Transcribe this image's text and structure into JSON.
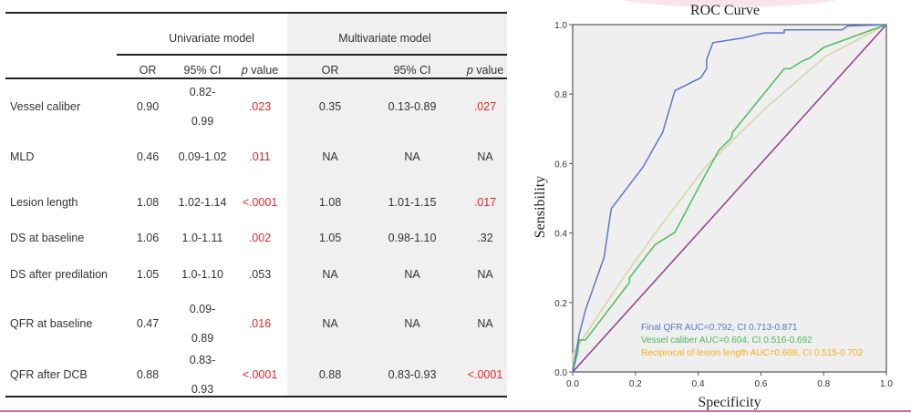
{
  "table": {
    "group_headers": [
      "Univariate model",
      "Multivariate model"
    ],
    "columns": [
      "",
      "OR",
      "95% CI",
      "p value",
      "OR",
      "95% CI",
      "p value"
    ],
    "rows": [
      {
        "label": "Vessel caliber",
        "uni_or": "0.90",
        "uni_ci": [
          "0.82-",
          "0.99"
        ],
        "uni_p": ".023",
        "uni_sig": true,
        "multi_or": "0.35",
        "multi_ci": "0.13-0.89",
        "multi_p": ".027",
        "multi_sig": true
      },
      {
        "label": "MLD",
        "uni_or": "0.46",
        "uni_ci": [
          "0.09-1.02"
        ],
        "uni_p": ".011",
        "uni_sig": true,
        "multi_or": "NA",
        "multi_ci": "NA",
        "multi_p": "NA",
        "multi_sig": false
      },
      {
        "label": "Lesion length",
        "uni_or": "1.08",
        "uni_ci": [
          "1.02-1.14"
        ],
        "uni_p": "<.0001",
        "uni_sig": true,
        "multi_or": "1.08",
        "multi_ci": "1.01-1.15",
        "multi_p": ".017",
        "multi_sig": true
      },
      {
        "label": "DS at baseline",
        "uni_or": "1.06",
        "uni_ci": [
          "1.0-1.11"
        ],
        "uni_p": ".002",
        "uni_sig": true,
        "multi_or": "1.05",
        "multi_ci": "0.98-1.10",
        "multi_p": ".32",
        "multi_sig": false
      },
      {
        "label": "DS after predilation",
        "uni_or": "1.05",
        "uni_ci": [
          "1.0-1.10"
        ],
        "uni_p": ".053",
        "uni_sig": false,
        "multi_or": "NA",
        "multi_ci": "NA",
        "multi_p": "NA",
        "multi_sig": false
      },
      {
        "label": "QFR at baseline",
        "uni_or": "0.47",
        "uni_ci": [
          "0.09-",
          "0.89"
        ],
        "uni_p": ".016",
        "uni_sig": true,
        "multi_or": "NA",
        "multi_ci": "NA",
        "multi_p": "NA",
        "multi_sig": false
      },
      {
        "label": "QFR after DCB",
        "uni_or": "0.88",
        "uni_ci": [
          "0.83-",
          "0.93"
        ],
        "uni_p": "<.0001",
        "uni_sig": true,
        "multi_or": "0.88",
        "multi_ci": "0.83-0.93",
        "multi_p": "<.0001",
        "multi_sig": true
      }
    ],
    "colors": {
      "significant": "#e8252b",
      "normal": "#333333",
      "multivariate_bg": "#f0f0f0"
    }
  },
  "chart_data": {
    "type": "line",
    "title": "ROC Curve",
    "xlabel": "Specificity",
    "ylabel": "Sensibility",
    "xlim": [
      0,
      1
    ],
    "ylim": [
      0,
      1
    ],
    "xticks": [
      "0.0",
      "0.2",
      "0.4",
      "0.6",
      "0.8",
      "1.0"
    ],
    "yticks": [
      "0.0",
      "0.2",
      "0.4",
      "0.6",
      "0.8",
      "1.0"
    ],
    "grid": false,
    "background": "#efefef",
    "legend_position": "bottom-right",
    "series": [
      {
        "name": "Final QFR AUC=0.792, CI 0.713-0.871",
        "color": "#5b77c6",
        "x": [
          0,
          0.021,
          0.041,
          0.1,
          0.123,
          0.224,
          0.287,
          0.326,
          0.408,
          0.427,
          0.427,
          0.447,
          0.539,
          0.611,
          0.674,
          0.674,
          0.858,
          0.877,
          1
        ],
        "y": [
          0,
          0.109,
          0.179,
          0.33,
          0.47,
          0.59,
          0.69,
          0.81,
          0.847,
          0.873,
          0.9,
          0.948,
          0.961,
          0.976,
          0.976,
          0.985,
          0.985,
          0.996,
          1
        ]
      },
      {
        "name": "Vessel caliber AUC=0.604, CI 0.516-0.692",
        "color": "#4cbb5c",
        "x": [
          0,
          0.016,
          0.021,
          0.041,
          0.181,
          0.181,
          0.263,
          0.326,
          0.423,
          0.466,
          0.505,
          0.51,
          0.674,
          0.693,
          0.732,
          0.756,
          0.8,
          1
        ],
        "y": [
          0,
          0.057,
          0.092,
          0.092,
          0.258,
          0.271,
          0.367,
          0.402,
          0.568,
          0.638,
          0.673,
          0.69,
          0.873,
          0.873,
          0.895,
          0.904,
          0.934,
          1
        ]
      },
      {
        "name": "Reciprocal of lesion length AUC=0.608, CI 0.515-0.702",
        "color": "#d8d2a4",
        "legend_color": "#f5b01a",
        "x": [
          0,
          0,
          0.142,
          0.147,
          0.268,
          0.423,
          0.616,
          0.805,
          1
        ],
        "y": [
          0,
          0.052,
          0.245,
          0.253,
          0.406,
          0.59,
          0.76,
          0.908,
          1
        ]
      },
      {
        "color": "#8e3f8e",
        "x": [
          0,
          1
        ],
        "y": [
          0,
          1
        ]
      }
    ]
  }
}
